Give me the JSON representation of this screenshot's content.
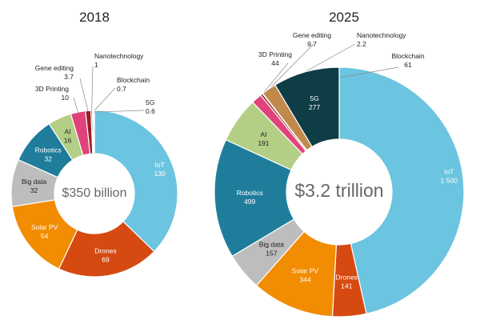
{
  "chart_data": [
    {
      "type": "pie",
      "variant": "donut",
      "title": "2018",
      "center_label": "$350 billion",
      "unit": "billion USD",
      "categories": [
        "IoT",
        "Drones",
        "Solar PV",
        "Big data",
        "Robotics",
        "AI",
        "3D Printing",
        "Gene editing",
        "Nanotechnology",
        "Blockchain",
        "5G"
      ],
      "values": [
        130,
        69,
        54,
        32,
        32,
        16,
        10,
        3.7,
        1,
        0.7,
        0.6
      ],
      "value_labels": [
        "130",
        "69",
        "54",
        "32",
        "32",
        "16",
        "10",
        "3.7",
        "1",
        "0.7",
        "0.6"
      ]
    },
    {
      "type": "pie",
      "variant": "donut",
      "title": "2025",
      "center_label": "$3.2 trillion",
      "unit": "billion USD",
      "categories": [
        "IoT",
        "Drones",
        "Solar PV",
        "Big data",
        "Robotics",
        "AI",
        "3D Printing",
        "Gene editing",
        "Nanotechnology",
        "Blockchain",
        "5G"
      ],
      "values": [
        1500,
        141,
        344,
        157,
        499,
        191,
        44,
        9.7,
        2.2,
        61,
        277
      ],
      "value_labels": [
        "1 500",
        "141",
        "344",
        "157",
        "499",
        "191",
        "44",
        "9.7",
        "2.2",
        "61",
        "277"
      ]
    }
  ],
  "colors": {
    "IoT": "#6cc5e0",
    "Drones": "#d64a12",
    "Solar PV": "#f28c00",
    "Big data": "#bdbdbd",
    "Robotics": "#1f7d9b",
    "AI": "#b3cf85",
    "3D Printing": "#e0437a",
    "Gene editing": "#9a1d24",
    "Nanotechnology": "#555555",
    "Blockchain": "#c18a4a",
    "5G": "#0f3d45"
  }
}
